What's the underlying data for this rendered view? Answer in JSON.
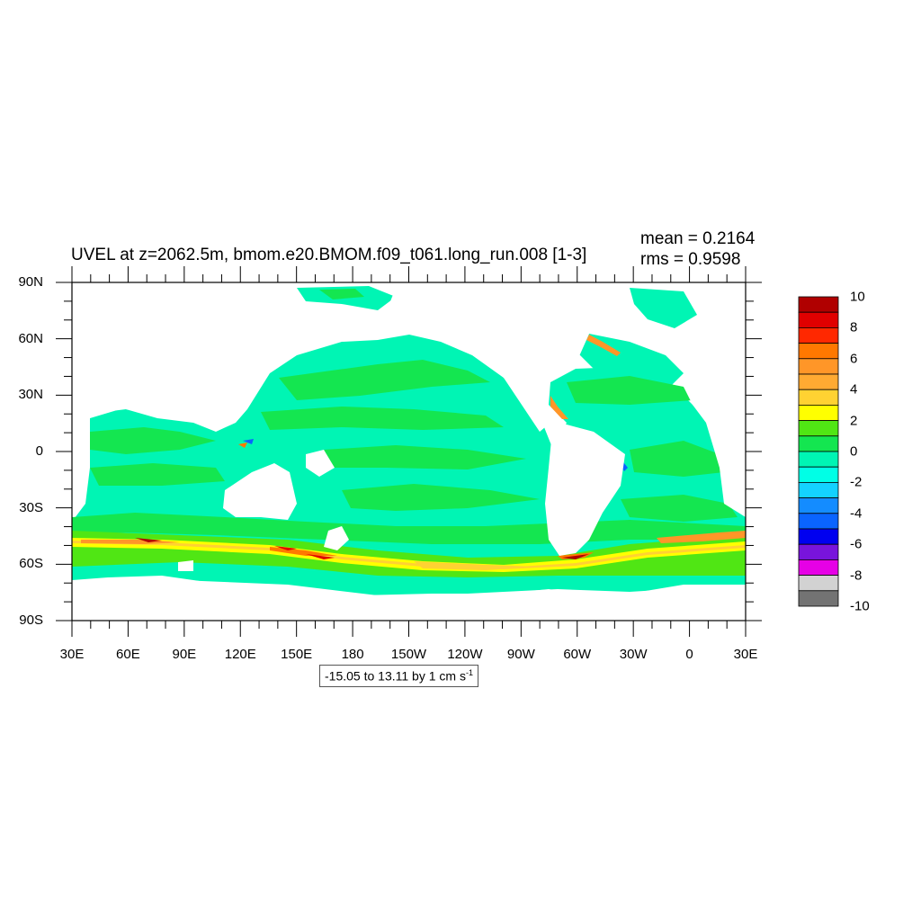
{
  "title": "UVEL at z=2062.5m, bmom.e20.BMOM.f09_t061.long_run.008 [1-3]",
  "stats": {
    "mean": "mean = 0.2164",
    "rms": "rms = 0.9598"
  },
  "y_axis_labels": [
    "90N",
    "60N",
    "30N",
    "0",
    "30S",
    "60S",
    "90S"
  ],
  "x_axis_labels": [
    "30E",
    "60E",
    "90E",
    "120E",
    "150E",
    "180",
    "150W",
    "120W",
    "90W",
    "60W",
    "30W",
    "0",
    "30E"
  ],
  "range_note": {
    "text": "-15.05 to 13.11 by 1 cm s",
    "superscript": "-1"
  },
  "colorbar": {
    "labels": [
      "10",
      "8",
      "6",
      "4",
      "2",
      "0",
      "-2",
      "-4",
      "-6",
      "-8",
      "-10"
    ],
    "colors": [
      "#b00000",
      "#e00000",
      "#ff2800",
      "#ff7800",
      "#ff9628",
      "#ffaa32",
      "#ffd232",
      "#ffff00",
      "#50e614",
      "#14e650",
      "#00f5b4",
      "#00ffe6",
      "#14d2ff",
      "#148cff",
      "#0a64ff",
      "#0000f0",
      "#7814dc",
      "#e600e6",
      "#d2d2d2",
      "#737373"
    ]
  },
  "chart_data": {
    "type": "heatmap",
    "title": "UVEL at z=2062.5m, bmom.e20.BMOM.f09_t061.long_run.008 [1-3]",
    "variable": "UVEL",
    "units": "cm s-1",
    "mean": 0.2164,
    "rms": 0.9598,
    "contour_min": -15.05,
    "contour_max": 13.11,
    "contour_interval": 1,
    "lon_range": [
      30,
      390
    ],
    "lat_range": [
      -90,
      90
    ],
    "x_ticks": [
      "30E",
      "60E",
      "90E",
      "120E",
      "150E",
      "180",
      "150W",
      "120W",
      "90W",
      "60W",
      "30W",
      "0",
      "30E"
    ],
    "y_ticks": [
      "90N",
      "60N",
      "30N",
      "0",
      "30S",
      "60S",
      "90S"
    ],
    "colorbar_levels": [
      10,
      8,
      6,
      4,
      2,
      0,
      -2,
      -4,
      -6,
      -8,
      -10
    ]
  }
}
